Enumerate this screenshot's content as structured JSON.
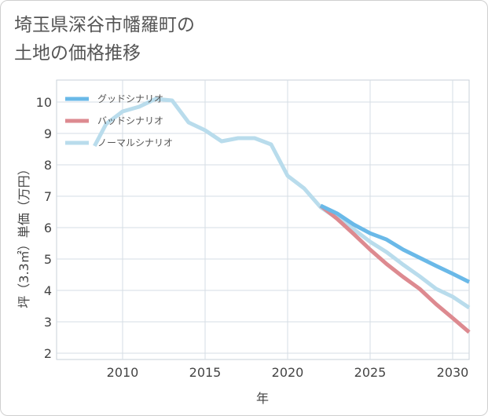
{
  "title_lines": [
    "埼玉県深谷市幡羅町の",
    "土地の価格推移"
  ],
  "chart_data": {
    "type": "line",
    "xlabel": "年",
    "ylabel": "坪（3.3㎡）単価（万円）",
    "xlim": [
      2006,
      2031
    ],
    "ylim": [
      1.8,
      10.7
    ],
    "xticks": [
      2010,
      2015,
      2020,
      2025,
      2030
    ],
    "yticks": [
      2,
      3,
      4,
      5,
      6,
      7,
      8,
      9,
      10
    ],
    "grid": true,
    "legend_position": "top-left",
    "series": [
      {
        "name": "グッドシナリオ",
        "color": "#6ab9e8",
        "x": [
          2022,
          2023,
          2024,
          2025,
          2026,
          2027,
          2028,
          2029,
          2030,
          2031
        ],
        "y": [
          6.7,
          6.45,
          6.1,
          5.82,
          5.62,
          5.3,
          5.04,
          4.78,
          4.53,
          4.27
        ]
      },
      {
        "name": "バッドシナリオ",
        "color": "#dd8a90",
        "x": [
          2022,
          2023,
          2024,
          2025,
          2026,
          2027,
          2028,
          2029,
          2030,
          2031
        ],
        "y": [
          6.7,
          6.28,
          5.8,
          5.3,
          4.84,
          4.43,
          4.05,
          3.56,
          3.12,
          2.67
        ]
      },
      {
        "name": "ノーマルシナリオ",
        "color": "#b9dcec",
        "x": [
          2008.3,
          2009,
          2010,
          2011,
          2012,
          2013,
          2014,
          2015,
          2016,
          2017,
          2018,
          2019,
          2020,
          2021,
          2022,
          2023,
          2024,
          2025,
          2026,
          2027,
          2028,
          2029,
          2030,
          2031
        ],
        "y": [
          8.6,
          9.3,
          9.7,
          9.85,
          10.1,
          10.05,
          9.35,
          9.1,
          8.75,
          8.85,
          8.85,
          8.65,
          7.65,
          7.25,
          6.65,
          6.3,
          5.95,
          5.55,
          5.22,
          4.82,
          4.45,
          4.05,
          3.8,
          3.45
        ]
      }
    ]
  }
}
